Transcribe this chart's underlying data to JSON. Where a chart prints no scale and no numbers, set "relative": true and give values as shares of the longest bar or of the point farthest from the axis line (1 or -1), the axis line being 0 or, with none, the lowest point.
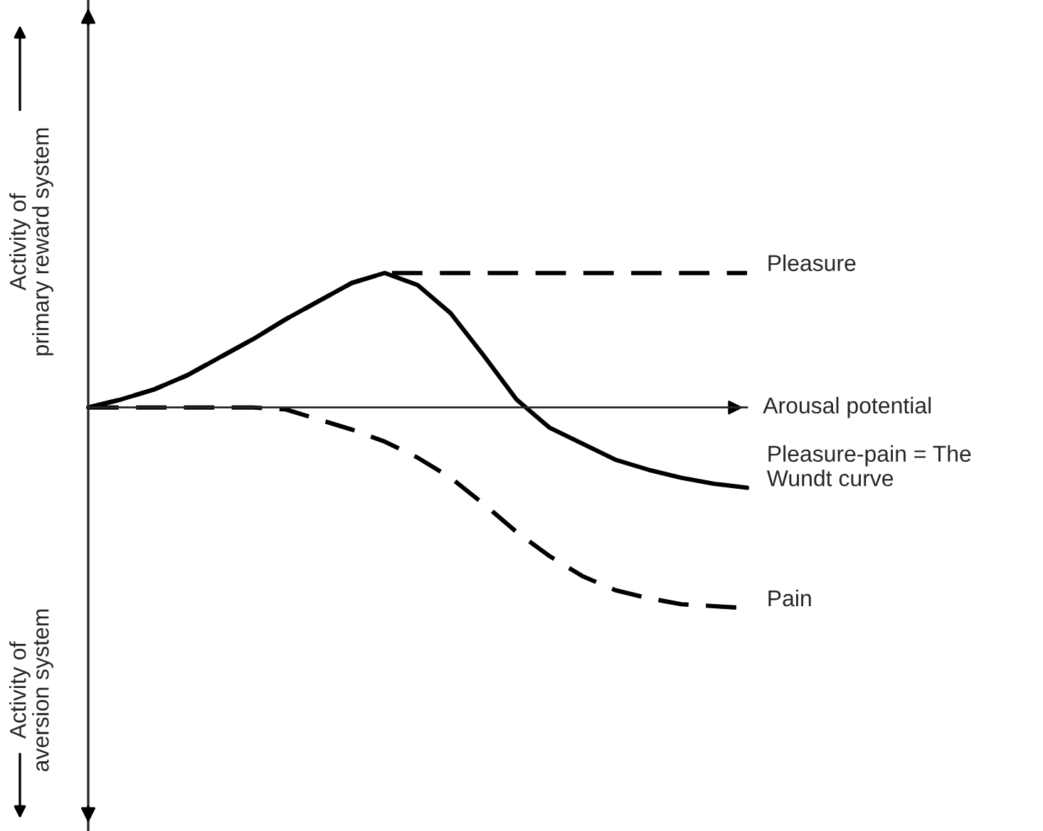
{
  "chart_data": {
    "type": "line",
    "relative": true,
    "xlabel": "Arousal potential",
    "ylabel": "Activity of\nprimary reward system",
    "annotations": [
      "Activity of\naversion system"
    ],
    "categories": [
      null,
      null,
      null,
      null,
      null,
      null,
      null,
      null,
      null,
      null,
      null,
      null,
      null,
      null,
      null,
      null,
      null,
      null,
      null,
      null,
      null
    ],
    "series": [
      {
        "name": "Pleasure-pain = The\nWundt curve",
        "color": "#000000",
        "line_style": "solid",
        "values": [
          0,
          0.04,
          0.09,
          0.16,
          0.25,
          0.34,
          0.44,
          0.53,
          0.62,
          0.67,
          0.61,
          0.47,
          0.26,
          0.04,
          -0.1,
          -0.18,
          -0.26,
          -0.31,
          -0.35,
          -0.38,
          -0.4
        ]
      },
      {
        "name": "Pleasure",
        "color": "#000000",
        "line_style": "dashed",
        "values": [
          0,
          0.04,
          0.09,
          0.16,
          0.25,
          0.34,
          0.44,
          0.53,
          0.62,
          0.67,
          0.67,
          0.67,
          0.67,
          0.67,
          0.67,
          0.67,
          0.67,
          0.67,
          0.67,
          0.67,
          0.67
        ]
      },
      {
        "name": "Pain",
        "color": "#000000",
        "line_style": "dashed",
        "values": [
          0,
          0,
          0,
          0,
          0,
          0,
          -0.01,
          -0.06,
          -0.11,
          -0.17,
          -0.25,
          -0.35,
          -0.48,
          -0.62,
          -0.74,
          -0.84,
          -0.91,
          -0.95,
          -0.98,
          -0.99,
          -1
        ]
      }
    ],
    "legend": false,
    "grid": false
  }
}
